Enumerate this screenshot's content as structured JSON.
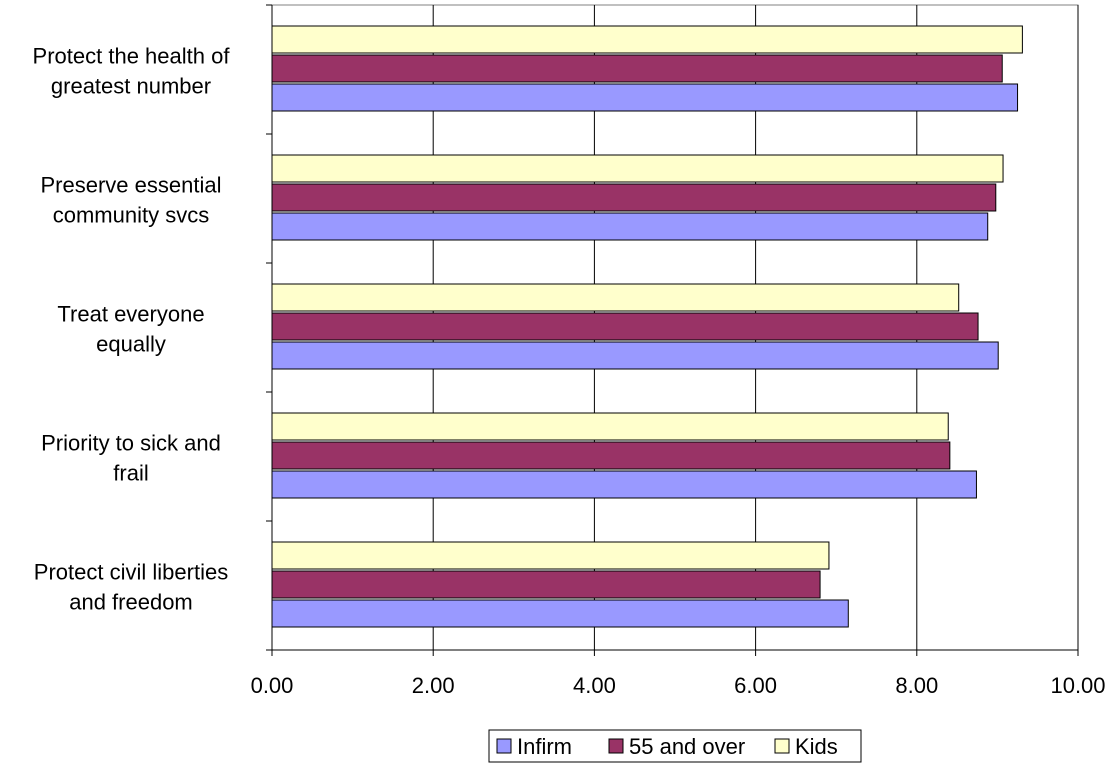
{
  "chart_data": {
    "type": "bar",
    "orientation": "horizontal",
    "title": "",
    "xlabel": "",
    "ylabel": "",
    "categories": [
      [
        "Protect the health of",
        "greatest number"
      ],
      [
        "Preserve essential",
        "community svcs"
      ],
      [
        "Treat everyone",
        "equally"
      ],
      [
        "Priority to sick and",
        "frail"
      ],
      [
        "Protect civil liberties",
        "and freedom"
      ]
    ],
    "series": [
      {
        "name": "Infirm",
        "color": "#9999ff",
        "values": [
          9.25,
          8.88,
          9.01,
          8.74,
          7.15
        ]
      },
      {
        "name": "55 and over",
        "color": "#993366",
        "values": [
          9.06,
          8.98,
          8.76,
          8.41,
          6.8
        ]
      },
      {
        "name": "Kids",
        "color": "#ffffcc",
        "values": [
          9.31,
          9.07,
          8.52,
          8.39,
          6.91
        ]
      }
    ],
    "xlim": [
      0,
      10
    ],
    "xticks": [
      "0.00",
      "2.00",
      "4.00",
      "6.00",
      "8.00",
      "10.00"
    ],
    "grid": true,
    "legend_position": "bottom"
  }
}
